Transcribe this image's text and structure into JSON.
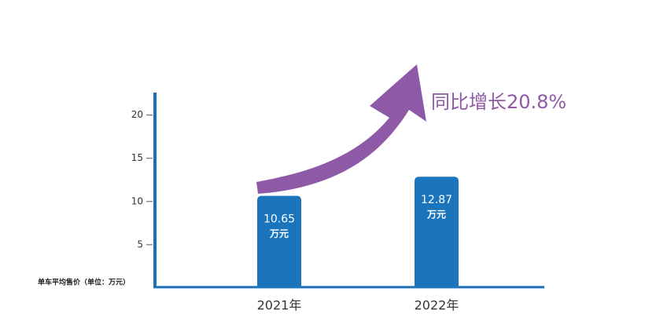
{
  "chart_data": {
    "type": "bar",
    "y_label": "单车平均售价（单位：万元）",
    "annotation": "同比增长20.8%",
    "categories": [
      "2021年",
      "2022年"
    ],
    "values": [
      10.65,
      12.87
    ],
    "value_unit": "万元",
    "color": "#1b75bc",
    "ylim": [
      0,
      22.6
    ],
    "yticks": [
      5,
      10,
      15,
      20
    ]
  }
}
